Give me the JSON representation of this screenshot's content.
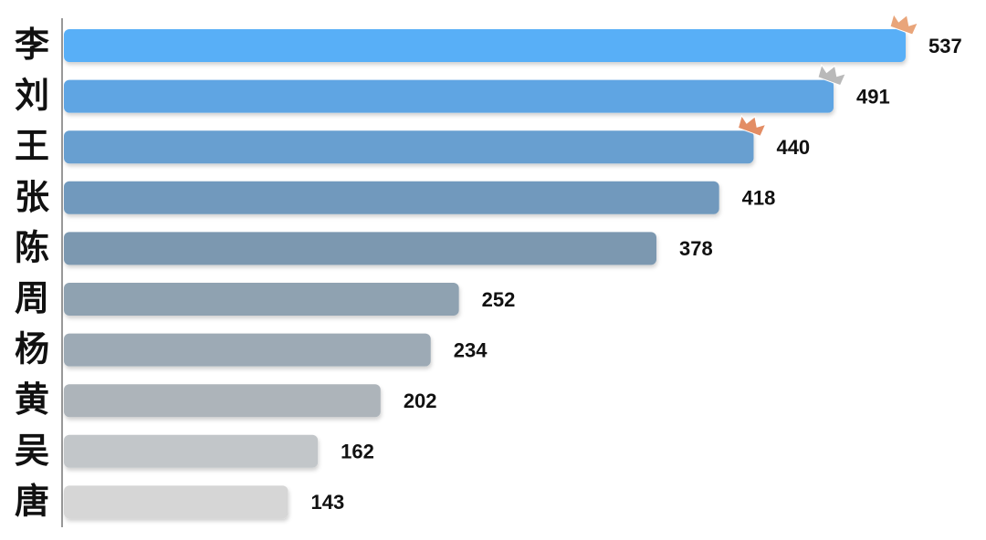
{
  "chart_data": {
    "type": "bar",
    "orientation": "horizontal",
    "categories": [
      "李",
      "刘",
      "王",
      "张",
      "陈",
      "周",
      "杨",
      "黄",
      "吴",
      "唐"
    ],
    "values": [
      537,
      491,
      440,
      418,
      378,
      252,
      234,
      202,
      162,
      143
    ],
    "colors": [
      "#59aff7",
      "#5fa5e3",
      "#679fd0",
      "#7199bd",
      "#7b98b0",
      "#8fa2b1",
      "#9daab5",
      "#adb4ba",
      "#c2c6c9",
      "#d6d6d6"
    ],
    "crown_colors": [
      "#e9a57a",
      "#b9b9b9",
      "#e38d64"
    ]
  }
}
